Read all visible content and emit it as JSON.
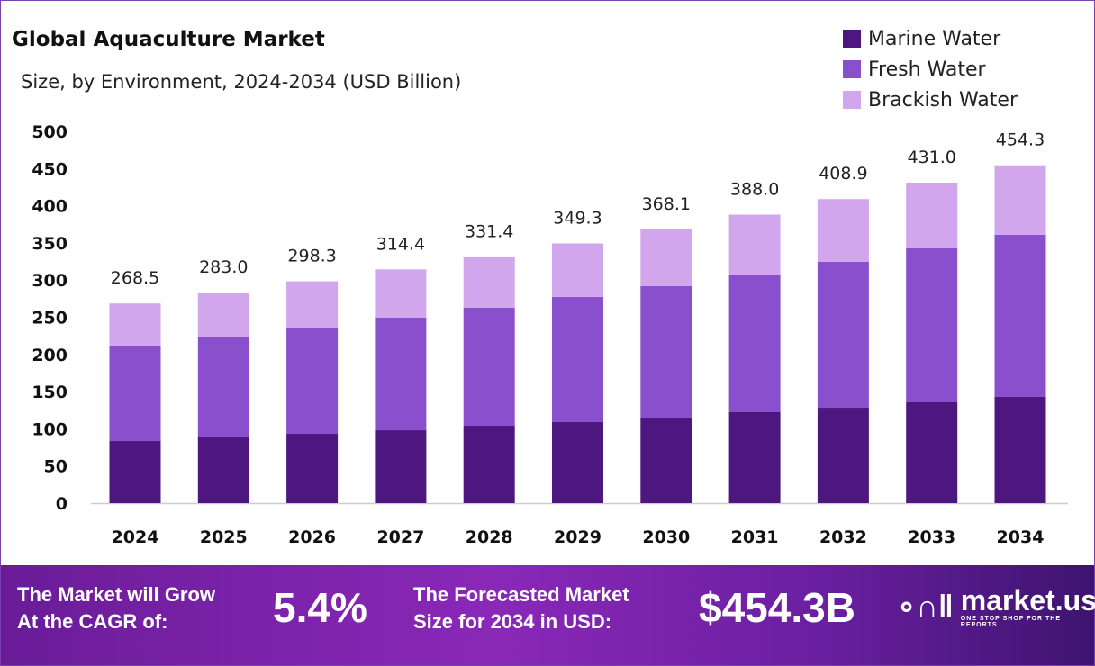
{
  "chart_data": {
    "type": "bar",
    "stacked": true,
    "title": "Global Aquaculture Market",
    "subtitle": "Size, by Environment, 2024-2034 (USD Billion)",
    "categories": [
      "2024",
      "2025",
      "2026",
      "2027",
      "2028",
      "2029",
      "2030",
      "2031",
      "2032",
      "2033",
      "2034"
    ],
    "series": [
      {
        "name": "Marine Water",
        "color": "#4e1780",
        "values": [
          83.5,
          88.4,
          93.2,
          98.0,
          104.1,
          109.0,
          115.0,
          122.3,
          128.3,
          135.6,
          142.9
        ]
      },
      {
        "name": "Fresh Water",
        "color": "#8a4fcc",
        "values": [
          128.4,
          135.6,
          142.9,
          151.4,
          158.6,
          168.2,
          176.8,
          185.2,
          196.2,
          207.0,
          217.9
        ]
      },
      {
        "name": "Brackish Water",
        "color": "#d2a6ec",
        "values": [
          56.6,
          59.0,
          62.2,
          65.0,
          68.7,
          72.1,
          76.3,
          80.5,
          84.4,
          88.4,
          93.5
        ]
      }
    ],
    "totals": [
      "268.5",
      "283.0",
      "298.3",
      "314.4",
      "331.4",
      "349.3",
      "368.1",
      "388.0",
      "408.9",
      "431.0",
      "454.3"
    ],
    "ylim": [
      0,
      500
    ],
    "yticks": [
      "0",
      "50",
      "100",
      "150",
      "200",
      "250",
      "300",
      "350",
      "400",
      "450",
      "500"
    ],
    "grid": false,
    "legend": "top-right"
  },
  "footer": {
    "cagr_label_1": "The Market will Grow",
    "cagr_label_2": "At the CAGR of:",
    "cagr_value": "5.4%",
    "forecast_label_1": "The Forecasted Market",
    "forecast_label_2": "Size for 2034 in USD:",
    "forecast_value": "$454.3B",
    "logo_name": "market.us",
    "logo_tagline": "ONE STOP SHOP FOR THE REPORTS"
  }
}
